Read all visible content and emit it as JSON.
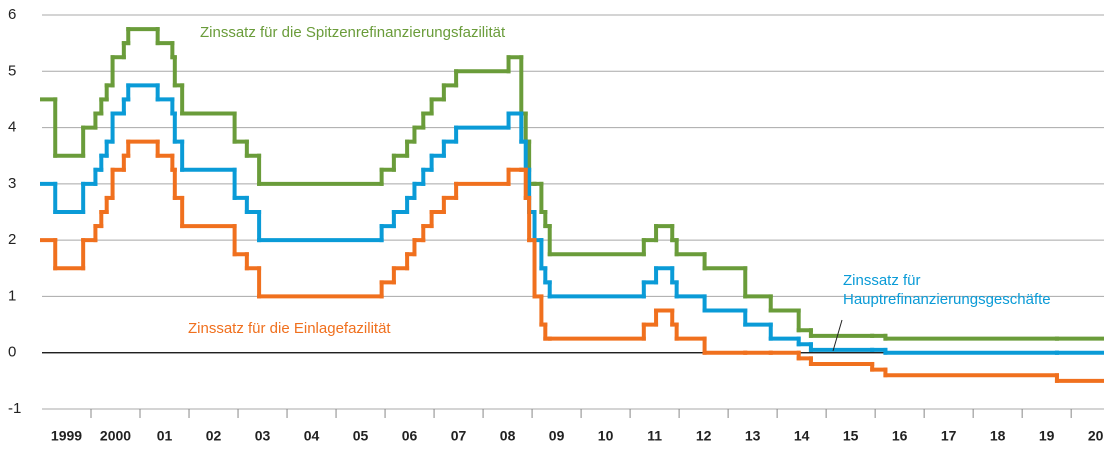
{
  "chart_data": {
    "type": "line",
    "step": true,
    "x": [
      1999.0,
      1999.27,
      1999.84,
      2000.09,
      2000.21,
      2000.32,
      2000.44,
      2000.67,
      2000.76,
      2001.36,
      2001.66,
      2001.71,
      2001.86,
      2002.93,
      2003.18,
      2003.43,
      2005.93,
      2006.18,
      2006.45,
      2006.6,
      2006.78,
      2006.95,
      2007.2,
      2007.45,
      2008.52,
      2008.78,
      2008.87,
      2008.94,
      2009.05,
      2009.19,
      2009.27,
      2009.36,
      2011.28,
      2011.53,
      2011.86,
      2011.95,
      2012.52,
      2013.35,
      2013.87,
      2014.44,
      2014.69,
      2015.94,
      2016.21,
      2019.71
    ],
    "series": [
      {
        "name": "Zinssatz für die Spitzenrefinanzierungsfazilität",
        "color": "#6a9c3a",
        "values": [
          4.5,
          3.5,
          4.0,
          4.25,
          4.5,
          4.75,
          5.25,
          5.5,
          5.75,
          5.5,
          5.25,
          4.75,
          4.25,
          3.75,
          3.5,
          3.0,
          3.25,
          3.5,
          3.75,
          4.0,
          4.25,
          4.5,
          4.75,
          5.0,
          5.25,
          4.25,
          3.75,
          3.0,
          3.0,
          2.5,
          2.25,
          1.75,
          2.0,
          2.25,
          2.0,
          1.75,
          1.5,
          1.0,
          0.75,
          0.4,
          0.3,
          0.3,
          0.25,
          0.25
        ]
      },
      {
        "name": [
          "Zinssatz für",
          "Hauptrefinanzierungsgeschäfte"
        ],
        "color": "#0a9bd7",
        "values": [
          3.0,
          2.5,
          3.0,
          3.25,
          3.5,
          3.75,
          4.25,
          4.5,
          4.75,
          4.5,
          4.25,
          3.75,
          3.25,
          2.75,
          2.5,
          2.0,
          2.25,
          2.5,
          2.75,
          3.0,
          3.25,
          3.5,
          3.75,
          4.0,
          4.25,
          3.75,
          3.25,
          2.5,
          2.0,
          1.5,
          1.25,
          1.0,
          1.25,
          1.5,
          1.25,
          1.0,
          0.75,
          0.5,
          0.25,
          0.15,
          0.05,
          0.05,
          0.0,
          0.0
        ]
      },
      {
        "name": "Zinssatz für die Einlagefazilität",
        "color": "#f0701e",
        "values": [
          2.0,
          1.5,
          2.0,
          2.25,
          2.5,
          2.75,
          3.25,
          3.5,
          3.75,
          3.5,
          3.25,
          2.75,
          2.25,
          1.75,
          1.5,
          1.0,
          1.25,
          1.5,
          1.75,
          2.0,
          2.25,
          2.5,
          2.75,
          3.0,
          3.25,
          3.25,
          2.75,
          2.0,
          1.0,
          0.5,
          0.25,
          0.25,
          0.5,
          0.75,
          0.5,
          0.25,
          0.0,
          0.0,
          0.0,
          -0.1,
          -0.2,
          -0.3,
          -0.4,
          -0.5
        ]
      }
    ],
    "xlim": [
      1999,
      2020.67
    ],
    "xticks": [
      {
        "value": 1999,
        "label": "1999"
      },
      {
        "value": 2000,
        "label": "2000"
      },
      {
        "value": 2001,
        "label": "01"
      },
      {
        "value": 2002,
        "label": "02"
      },
      {
        "value": 2003,
        "label": "03"
      },
      {
        "value": 2004,
        "label": "04"
      },
      {
        "value": 2005,
        "label": "05"
      },
      {
        "value": 2006,
        "label": "06"
      },
      {
        "value": 2007,
        "label": "07"
      },
      {
        "value": 2008,
        "label": "08"
      },
      {
        "value": 2009,
        "label": "09"
      },
      {
        "value": 2010,
        "label": "10"
      },
      {
        "value": 2011,
        "label": "11"
      },
      {
        "value": 2012,
        "label": "12"
      },
      {
        "value": 2013,
        "label": "13"
      },
      {
        "value": 2014,
        "label": "14"
      },
      {
        "value": 2015,
        "label": "15"
      },
      {
        "value": 2016,
        "label": "16"
      },
      {
        "value": 2017,
        "label": "17"
      },
      {
        "value": 2018,
        "label": "18"
      },
      {
        "value": 2019,
        "label": "19"
      },
      {
        "value": 2020,
        "label": "20"
      }
    ],
    "ylim": [
      -1,
      6
    ],
    "yticks": [
      -1,
      0,
      1,
      2,
      3,
      4,
      5,
      6
    ],
    "grid": true
  }
}
